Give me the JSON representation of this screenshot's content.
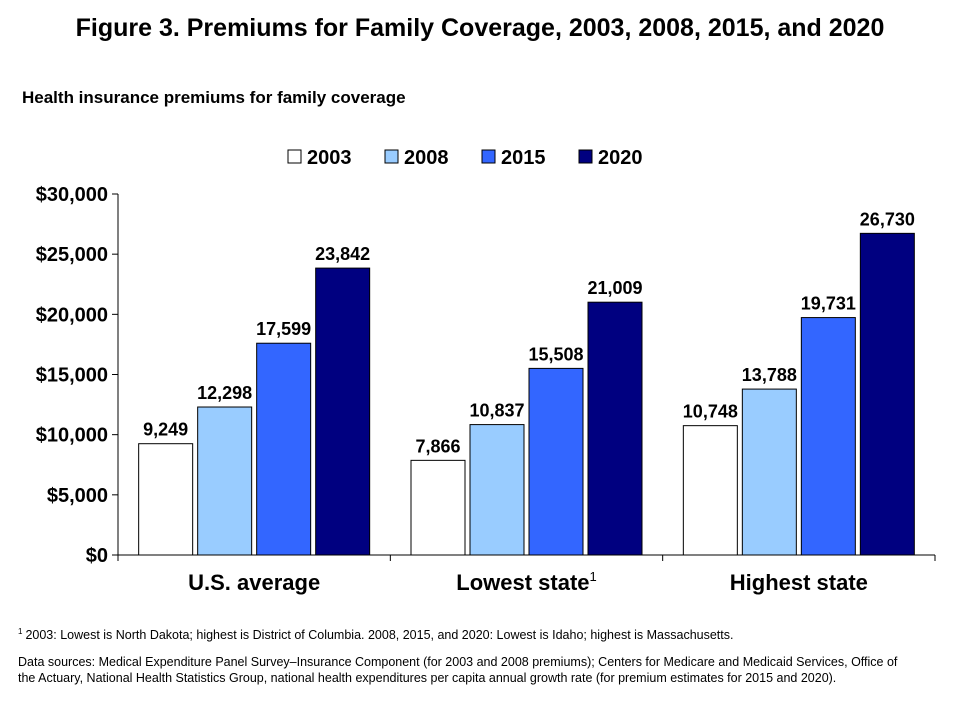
{
  "title": "Figure 3. Premiums for Family Coverage, 2003, 2008, 2015, and 2020",
  "subtitle": "Health insurance premiums for family coverage",
  "footnote": {
    "marker": "1",
    "text": "2003: Lowest is North Dakota; highest is District of Columbia. 2008, 2015, and 2020: Lowest is Idaho; highest is Massachusetts."
  },
  "sources": "Data sources: Medical Expenditure Panel Survey–Insurance Component (for 2003 and 2008 premiums); Centers for Medicare and Medicaid Services, Office of the Actuary, National Health Statistics Group, national health expenditures per capita annual growth rate (for premium estimates for 2015 and 2020).",
  "chart_data": {
    "type": "bar",
    "categories": [
      "U.S. average",
      "Lowest state",
      "Highest state"
    ],
    "category_superscripts": [
      "",
      "1",
      ""
    ],
    "series": [
      {
        "name": "2003",
        "values": [
          9249,
          7866,
          10748
        ],
        "color": "#ffffff"
      },
      {
        "name": "2008",
        "values": [
          12298,
          10837,
          13788
        ],
        "color": "#99ccff"
      },
      {
        "name": "2015",
        "values": [
          17599,
          15508,
          19731
        ],
        "color": "#3366ff"
      },
      {
        "name": "2020",
        "values": [
          23842,
          21009,
          26730
        ],
        "color": "#000080"
      }
    ],
    "data_labels": [
      [
        "9,249",
        "12,298",
        "17,599",
        "23,842"
      ],
      [
        "7,866",
        "10,837",
        "15,508",
        "21,009"
      ],
      [
        "10,748",
        "13,788",
        "19,731",
        "26,730"
      ]
    ],
    "yticks": [
      0,
      5000,
      10000,
      15000,
      20000,
      25000,
      30000
    ],
    "ytick_labels": [
      "$0",
      "$5,000",
      "$10,000",
      "$15,000",
      "$20,000",
      "$25,000",
      "$30,000"
    ],
    "ylim": [
      0,
      30000
    ],
    "legend_position": "top-center",
    "grid": false
  }
}
